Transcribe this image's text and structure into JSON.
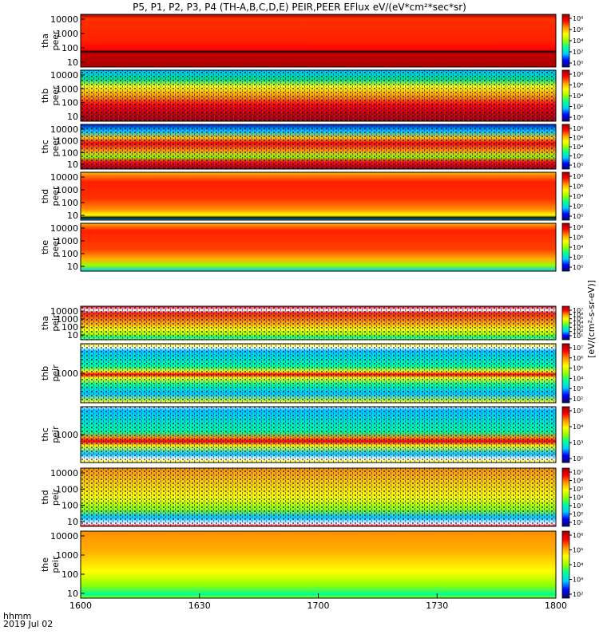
{
  "title": "P5, P1, P2, P3, P4 (TH-A,B,C,D,E) PEIR,PEER EFlux eV/(eV*cm²*sec*sr)",
  "xaxis_prefix": {
    "line1": "hhmm",
    "line2": "2019 Jul 02"
  },
  "colorbar_label": "[eV/(cm²-s-sr-eV)]",
  "colorscale": [
    "#0a0a64",
    "#0000ff",
    "#00c8ff",
    "#00ff96",
    "#96ff00",
    "#ffff00",
    "#ff9600",
    "#ff0000",
    "#9b0000"
  ],
  "chart_data": {
    "type": "heatmap",
    "x_ticks": [
      "1600",
      "1630",
      "1700",
      "1730",
      "1800"
    ],
    "x_range_hhmm": [
      "1600",
      "1800"
    ],
    "panels": [
      {
        "line1": "tha",
        "line2": "peer",
        "y_ticks": [
          "10000",
          "1000",
          "100",
          "10"
        ],
        "log_y": true,
        "cbar_ticks": [
          "10⁸",
          "10⁶",
          "10⁴",
          "10²",
          "10⁰"
        ]
      },
      {
        "line1": "thb",
        "line2": "peer",
        "y_ticks": [
          "10000",
          "1000",
          "100",
          "10"
        ],
        "log_y": true,
        "cbar_ticks": [
          "10⁸",
          "10⁶",
          "10⁴",
          "10²",
          "10⁰"
        ]
      },
      {
        "line1": "thc",
        "line2": "peer",
        "y_ticks": [
          "10000",
          "1000",
          "100",
          "10"
        ],
        "log_y": true,
        "cbar_ticks": [
          "10⁸",
          "10⁶",
          "10⁴",
          "10²",
          "10⁰"
        ]
      },
      {
        "line1": "thd",
        "line2": "peer",
        "y_ticks": [
          "10000",
          "1000",
          "100",
          "10"
        ],
        "log_y": true,
        "cbar_ticks": [
          "10⁸",
          "10⁶",
          "10⁴",
          "10²",
          "10⁰"
        ]
      },
      {
        "line1": "the",
        "line2": "peer",
        "y_ticks": [
          "10000",
          "1000",
          "100",
          "10"
        ],
        "log_y": true,
        "cbar_ticks": [
          "10⁸",
          "10⁶",
          "10⁴",
          "10²",
          "10⁰"
        ]
      },
      {
        "line1": "tha",
        "line2": "peir",
        "y_ticks": [
          "10000",
          "1000",
          "100",
          "10"
        ],
        "log_y": true,
        "cbar_ticks": [
          "10⁷",
          "10⁶",
          "10⁵",
          "10⁴",
          "10³",
          "10²",
          "10¹"
        ]
      },
      {
        "line1": "thb",
        "line2": "peir",
        "y_ticks": [
          "1000"
        ],
        "log_y": true,
        "cbar_ticks": [
          "10⁷",
          "10⁶",
          "10⁵",
          "10⁴",
          "10³",
          "10²"
        ]
      },
      {
        "line1": "thc",
        "line2": "peir",
        "y_ticks": [
          "1000"
        ],
        "log_y": true,
        "cbar_ticks": [
          "10⁵",
          "10⁴",
          "10³",
          "10²"
        ]
      },
      {
        "line1": "thd",
        "line2": "peir",
        "y_ticks": [
          "10000",
          "1000",
          "100",
          "10"
        ],
        "log_y": true,
        "cbar_ticks": [
          "10⁷",
          "10⁶",
          "10⁵",
          "10⁴",
          "10³",
          "10²",
          "10¹"
        ]
      },
      {
        "line1": "the",
        "line2": "peir",
        "y_ticks": [
          "10000",
          "1000",
          "100",
          "10"
        ],
        "log_y": true,
        "cbar_ticks": [
          "10⁶",
          "10⁵",
          "10⁴",
          "10³",
          "10²"
        ]
      }
    ]
  }
}
